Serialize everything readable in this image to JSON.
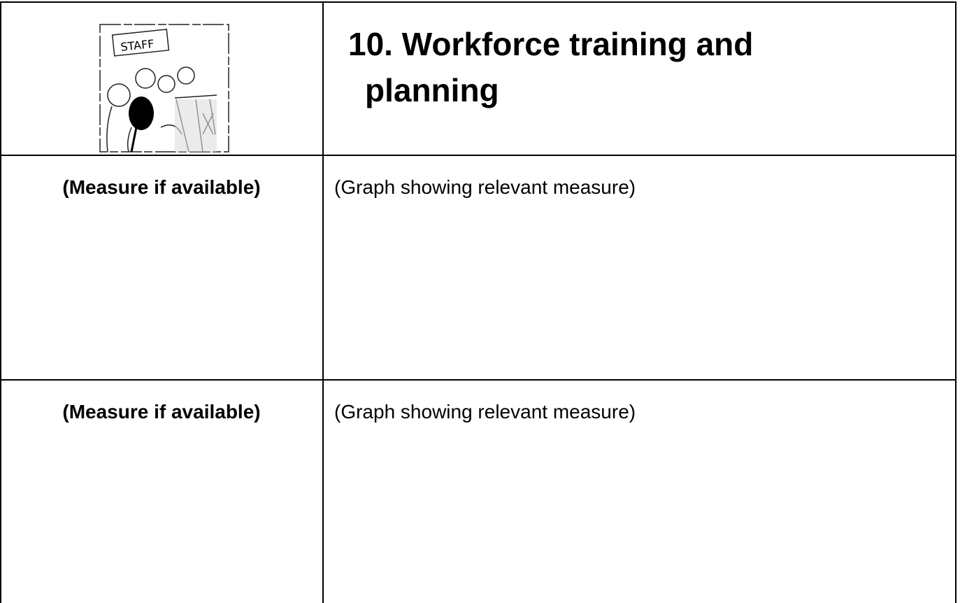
{
  "header": {
    "illustration_sign": "STAFF",
    "title": "10. Workforce training and planning"
  },
  "table": {
    "rows": [
      [
        "(Measure if available)",
        "(Graph showing relevant measure)"
      ],
      [
        "(Measure if available)",
        "(Graph showing relevant measure)"
      ]
    ]
  }
}
